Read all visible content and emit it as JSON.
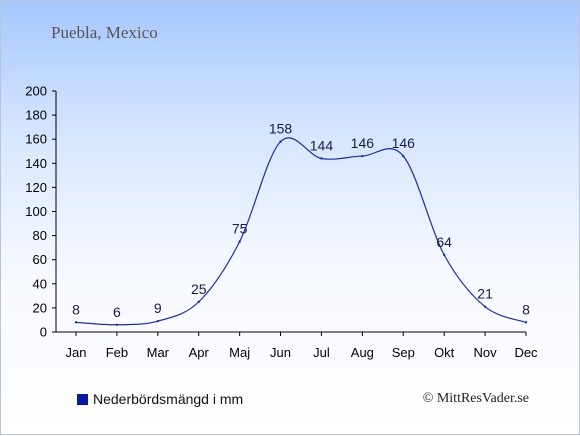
{
  "place_title": "Puebla, Mexico",
  "legend_label": "Nederbördsmängd i mm",
  "copyright": "© MittResVader.se",
  "chart_data": {
    "type": "line",
    "categories": [
      "Jan",
      "Feb",
      "Mar",
      "Apr",
      "Maj",
      "Jun",
      "Jul",
      "Aug",
      "Sep",
      "Okt",
      "Nov",
      "Dec"
    ],
    "series": [
      {
        "name": "Nederbördsmängd i mm",
        "values": [
          8,
          6,
          9,
          25,
          75,
          158,
          144,
          146,
          146,
          64,
          21,
          8
        ]
      }
    ],
    "ylim": [
      0,
      200
    ],
    "yticks": [
      0,
      20,
      40,
      60,
      80,
      100,
      120,
      140,
      160,
      180,
      200
    ],
    "color": "#1f2f9a",
    "grid": false,
    "legend": "bottom-left"
  }
}
